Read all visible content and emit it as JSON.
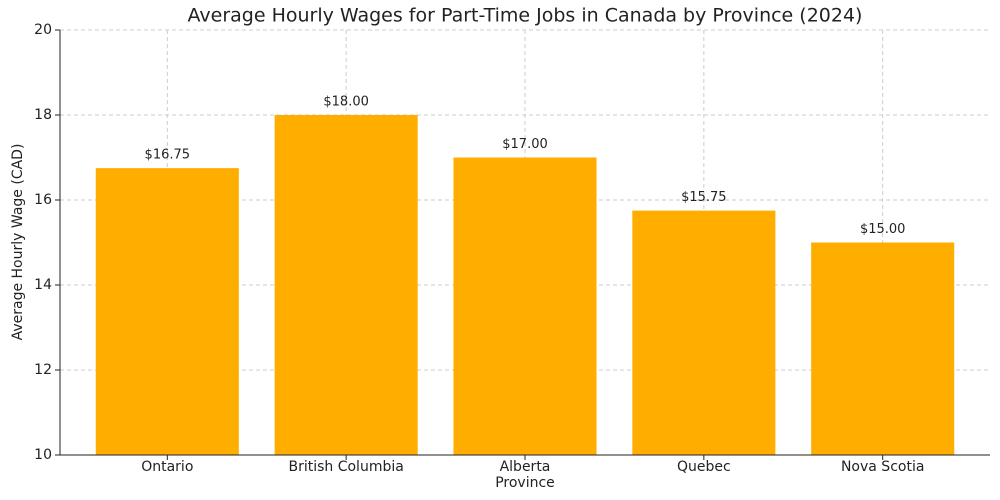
{
  "chart_data": {
    "type": "bar",
    "title": "Average Hourly Wages for Part-Time Jobs in Canada by Province (2024)",
    "x_label": "Province",
    "y_label": "Average Hourly Wage (CAD)",
    "categories": [
      "Ontario",
      "British Columbia",
      "Alberta",
      "Quebec",
      "Nova Scotia"
    ],
    "values": [
      16.75,
      18.0,
      17.0,
      15.75,
      15.0
    ],
    "value_labels": [
      "$16.75",
      "$18.00",
      "$17.00",
      "$15.75",
      "$15.00"
    ],
    "color": "#ffae00",
    "ylim": [
      10,
      20
    ],
    "yticks": [
      10,
      12,
      14,
      16,
      18,
      20
    ],
    "grid": true
  }
}
